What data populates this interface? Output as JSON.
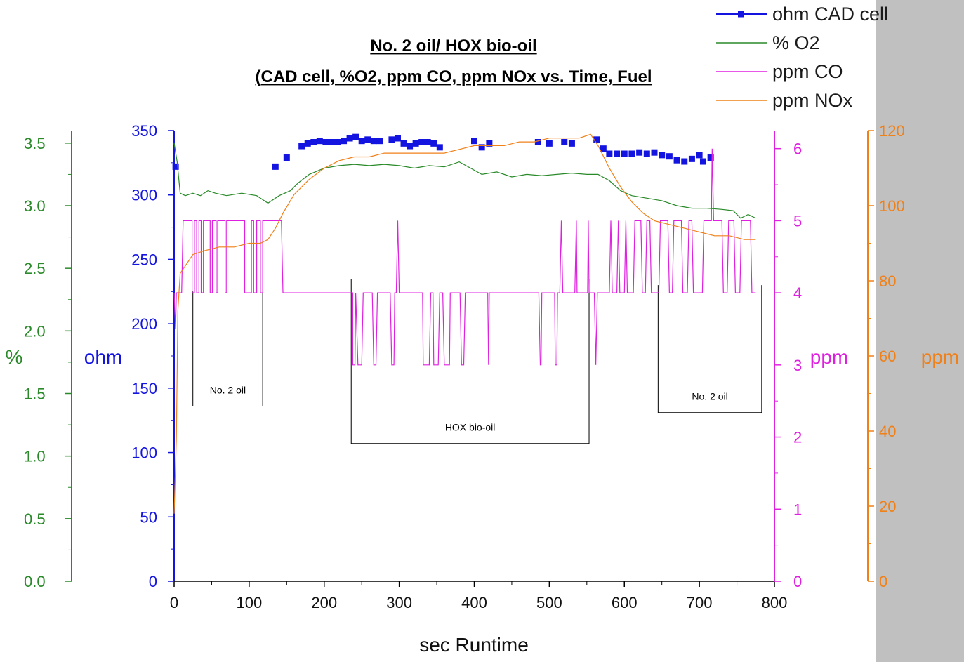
{
  "chart_data": {
    "type": "line",
    "title": "No. 2 oil/ HOX bio-oil",
    "subtitle_prefix": "(",
    "subtitle": "CAD cell, %O2, ppm CO, ppm NOx vs. Time, Fuel",
    "xlabel": "sec Runtime",
    "xlim": [
      0,
      800
    ],
    "xticks": [
      0,
      100,
      200,
      300,
      400,
      500,
      600,
      700,
      800
    ],
    "axes": [
      {
        "id": "pct",
        "label": "%",
        "color": "#2a8a2a",
        "ylim": [
          0,
          3.6
        ],
        "ticks": [
          "0.0",
          "0.5",
          "1.0",
          "1.5",
          "2.0",
          "2.5",
          "3.0",
          "3.5"
        ]
      },
      {
        "id": "ohm",
        "label": "ohm",
        "color": "#1414e0",
        "ylim": [
          0,
          350
        ],
        "ticks": [
          "0",
          "50",
          "100",
          "150",
          "200",
          "250",
          "300",
          "350"
        ]
      },
      {
        "id": "co",
        "label": "ppm",
        "color": "#e020e0",
        "ylim": [
          0,
          6.25
        ],
        "ticks": [
          "0",
          "1",
          "2",
          "3",
          "4",
          "5",
          "6"
        ]
      },
      {
        "id": "nox",
        "label": "ppm",
        "color": "#f08018",
        "ylim": [
          0,
          120
        ],
        "ticks": [
          "0",
          "20",
          "40",
          "60",
          "80",
          "100",
          "120"
        ]
      }
    ],
    "legend_position": "top-right",
    "series": [
      {
        "name": "ohm CAD cell",
        "axis": "ohm",
        "color": "#1414e0",
        "marker": "square",
        "line": false,
        "points": [
          [
            2,
            322
          ],
          [
            135,
            322
          ],
          [
            150,
            329
          ],
          [
            170,
            338
          ],
          [
            178,
            340
          ],
          [
            186,
            341
          ],
          [
            194,
            342
          ],
          [
            202,
            341
          ],
          [
            210,
            341
          ],
          [
            218,
            341
          ],
          [
            226,
            342
          ],
          [
            234,
            344
          ],
          [
            242,
            345
          ],
          [
            250,
            342
          ],
          [
            258,
            343
          ],
          [
            266,
            342
          ],
          [
            274,
            342
          ],
          [
            290,
            343
          ],
          [
            298,
            344
          ],
          [
            306,
            340
          ],
          [
            314,
            338
          ],
          [
            322,
            340
          ],
          [
            330,
            341
          ],
          [
            338,
            341
          ],
          [
            346,
            340
          ],
          [
            354,
            337
          ],
          [
            400,
            342
          ],
          [
            410,
            337
          ],
          [
            420,
            340
          ],
          [
            485,
            341
          ],
          [
            500,
            340
          ],
          [
            520,
            341
          ],
          [
            530,
            340
          ],
          [
            563,
            343
          ],
          [
            572,
            336
          ],
          [
            580,
            332
          ],
          [
            590,
            332
          ],
          [
            600,
            332
          ],
          [
            610,
            332
          ],
          [
            620,
            333
          ],
          [
            630,
            332
          ],
          [
            640,
            333
          ],
          [
            650,
            331
          ],
          [
            660,
            330
          ],
          [
            670,
            327
          ],
          [
            680,
            326
          ],
          [
            690,
            328
          ],
          [
            700,
            331
          ],
          [
            705,
            326
          ],
          [
            715,
            329
          ]
        ]
      },
      {
        "name": "% O2",
        "axis": "pct",
        "color": "#2a8a2a",
        "line": true,
        "points": [
          [
            0,
            3.5
          ],
          [
            4,
            3.35
          ],
          [
            8,
            3.1
          ],
          [
            15,
            3.08
          ],
          [
            25,
            3.1
          ],
          [
            35,
            3.08
          ],
          [
            45,
            3.12
          ],
          [
            55,
            3.1
          ],
          [
            70,
            3.08
          ],
          [
            90,
            3.1
          ],
          [
            110,
            3.08
          ],
          [
            125,
            3.02
          ],
          [
            140,
            3.08
          ],
          [
            155,
            3.12
          ],
          [
            165,
            3.18
          ],
          [
            180,
            3.25
          ],
          [
            200,
            3.3
          ],
          [
            220,
            3.32
          ],
          [
            240,
            3.33
          ],
          [
            260,
            3.32
          ],
          [
            280,
            3.33
          ],
          [
            300,
            3.32
          ],
          [
            320,
            3.3
          ],
          [
            340,
            3.32
          ],
          [
            360,
            3.31
          ],
          [
            380,
            3.35
          ],
          [
            395,
            3.3
          ],
          [
            410,
            3.25
          ],
          [
            430,
            3.27
          ],
          [
            450,
            3.23
          ],
          [
            470,
            3.25
          ],
          [
            490,
            3.24
          ],
          [
            510,
            3.25
          ],
          [
            530,
            3.26
          ],
          [
            550,
            3.25
          ],
          [
            565,
            3.25
          ],
          [
            580,
            3.2
          ],
          [
            595,
            3.12
          ],
          [
            610,
            3.08
          ],
          [
            630,
            3.06
          ],
          [
            650,
            3.04
          ],
          [
            670,
            3.0
          ],
          [
            690,
            2.98
          ],
          [
            710,
            2.98
          ],
          [
            730,
            2.97
          ],
          [
            745,
            2.96
          ],
          [
            755,
            2.9
          ],
          [
            765,
            2.93
          ],
          [
            775,
            2.9
          ]
        ]
      },
      {
        "name": "ppm CO",
        "axis": "co",
        "color": "#e020e0",
        "line": true,
        "points": [
          [
            0,
            4
          ],
          [
            2,
            3.5
          ],
          [
            3,
            4
          ],
          [
            10,
            4
          ],
          [
            10,
            4
          ],
          [
            12,
            5
          ],
          [
            24,
            5
          ],
          [
            24,
            4
          ],
          [
            27,
            4
          ],
          [
            27,
            5
          ],
          [
            30,
            5
          ],
          [
            30,
            4
          ],
          [
            33,
            4
          ],
          [
            33,
            5
          ],
          [
            36,
            5
          ],
          [
            36,
            4
          ],
          [
            39,
            4
          ],
          [
            39,
            5
          ],
          [
            48,
            5
          ],
          [
            48,
            4
          ],
          [
            51,
            4
          ],
          [
            51,
            5
          ],
          [
            56,
            5
          ],
          [
            56,
            4
          ],
          [
            58,
            4
          ],
          [
            58,
            5
          ],
          [
            68,
            5
          ],
          [
            68,
            4
          ],
          [
            70,
            4
          ],
          [
            70,
            5
          ],
          [
            94,
            5
          ],
          [
            94,
            4
          ],
          [
            103,
            4
          ],
          [
            103,
            5
          ],
          [
            106,
            5
          ],
          [
            106,
            4
          ],
          [
            110,
            4
          ],
          [
            110,
            5
          ],
          [
            115,
            5
          ],
          [
            115,
            4
          ],
          [
            118,
            4
          ],
          [
            118,
            5
          ],
          [
            143,
            5
          ],
          [
            145,
            4
          ],
          [
            238,
            4
          ],
          [
            238,
            3
          ],
          [
            241,
            3
          ],
          [
            242,
            4
          ],
          [
            245,
            3
          ],
          [
            250,
            3
          ],
          [
            252,
            4
          ],
          [
            264,
            4
          ],
          [
            266,
            3
          ],
          [
            269,
            3
          ],
          [
            271,
            4
          ],
          [
            288,
            4
          ],
          [
            290,
            3
          ],
          [
            293,
            3
          ],
          [
            294,
            4
          ],
          [
            296,
            4
          ],
          [
            298,
            5
          ],
          [
            300,
            4
          ],
          [
            331,
            4
          ],
          [
            332,
            3
          ],
          [
            340,
            3
          ],
          [
            342,
            4
          ],
          [
            345,
            4
          ],
          [
            346,
            3
          ],
          [
            352,
            3
          ],
          [
            354,
            4
          ],
          [
            358,
            4
          ],
          [
            360,
            3
          ],
          [
            367,
            3
          ],
          [
            368,
            4
          ],
          [
            381,
            4
          ],
          [
            383,
            3
          ],
          [
            386,
            3
          ],
          [
            388,
            4
          ],
          [
            418,
            4
          ],
          [
            419,
            3
          ],
          [
            420,
            4
          ],
          [
            486,
            4
          ],
          [
            488,
            3
          ],
          [
            489,
            3
          ],
          [
            490,
            4
          ],
          [
            507,
            4
          ],
          [
            508,
            3
          ],
          [
            510,
            3
          ],
          [
            511,
            4
          ],
          [
            514,
            4
          ],
          [
            516,
            5
          ],
          [
            518,
            4
          ],
          [
            534,
            4
          ],
          [
            536,
            5
          ],
          [
            537,
            4
          ],
          [
            551,
            4
          ],
          [
            552,
            5
          ],
          [
            553,
            4
          ],
          [
            560,
            4
          ],
          [
            562,
            3
          ],
          [
            564,
            4
          ],
          [
            580,
            4
          ],
          [
            582,
            5
          ],
          [
            584,
            4
          ],
          [
            590,
            4
          ],
          [
            592,
            5
          ],
          [
            594,
            4
          ],
          [
            600,
            4
          ],
          [
            602,
            5
          ],
          [
            604,
            4
          ],
          [
            612,
            4
          ],
          [
            614,
            5
          ],
          [
            622,
            5
          ],
          [
            624,
            4
          ],
          [
            628,
            4
          ],
          [
            630,
            5
          ],
          [
            634,
            5
          ],
          [
            636,
            4
          ],
          [
            646,
            4
          ],
          [
            648,
            5
          ],
          [
            658,
            5
          ],
          [
            660,
            4
          ],
          [
            664,
            4
          ],
          [
            666,
            5
          ],
          [
            676,
            5
          ],
          [
            678,
            4
          ],
          [
            684,
            4
          ],
          [
            686,
            5
          ],
          [
            690,
            5
          ],
          [
            692,
            4
          ],
          [
            704,
            4
          ],
          [
            706,
            5
          ],
          [
            716,
            5
          ],
          [
            717,
            6
          ],
          [
            719,
            5
          ],
          [
            730,
            5
          ],
          [
            732,
            4
          ],
          [
            737,
            4
          ],
          [
            739,
            5
          ],
          [
            746,
            5
          ],
          [
            748,
            4
          ],
          [
            754,
            4
          ],
          [
            756,
            5
          ],
          [
            768,
            5
          ],
          [
            770,
            4
          ],
          [
            775,
            4
          ]
        ]
      },
      {
        "name": "ppm NOx",
        "axis": "nox",
        "color": "#f08018",
        "line": true,
        "points": [
          [
            0,
            18
          ],
          [
            3,
            38
          ],
          [
            5,
            72
          ],
          [
            8,
            82
          ],
          [
            15,
            84
          ],
          [
            25,
            87
          ],
          [
            40,
            88
          ],
          [
            60,
            89
          ],
          [
            80,
            89
          ],
          [
            100,
            90
          ],
          [
            115,
            90
          ],
          [
            125,
            91
          ],
          [
            135,
            94
          ],
          [
            145,
            98
          ],
          [
            160,
            103
          ],
          [
            180,
            107
          ],
          [
            200,
            110
          ],
          [
            220,
            112
          ],
          [
            240,
            113
          ],
          [
            260,
            113
          ],
          [
            280,
            114
          ],
          [
            300,
            114
          ],
          [
            320,
            114
          ],
          [
            340,
            114
          ],
          [
            360,
            114
          ],
          [
            380,
            115
          ],
          [
            400,
            116
          ],
          [
            420,
            116
          ],
          [
            440,
            116
          ],
          [
            460,
            117
          ],
          [
            480,
            117
          ],
          [
            500,
            118
          ],
          [
            520,
            118
          ],
          [
            540,
            118
          ],
          [
            555,
            119
          ],
          [
            565,
            116
          ],
          [
            580,
            110
          ],
          [
            595,
            105
          ],
          [
            610,
            101
          ],
          [
            625,
            98
          ],
          [
            640,
            96
          ],
          [
            660,
            95
          ],
          [
            680,
            94
          ],
          [
            700,
            93
          ],
          [
            720,
            92
          ],
          [
            740,
            92
          ],
          [
            760,
            91
          ],
          [
            775,
            91
          ]
        ]
      }
    ],
    "annotations": [
      {
        "label": "No. 2 oil",
        "x0": 25,
        "x1": 118,
        "y_top": 225,
        "y_bottom": 136
      },
      {
        "label": "HOX bio-oil",
        "x0": 236,
        "x1": 553,
        "y_top": 235,
        "y_bottom": 107
      },
      {
        "label": "No. 2 oil",
        "x0": 645,
        "x1": 783,
        "y_top": 230,
        "y_bottom": 131
      }
    ]
  }
}
